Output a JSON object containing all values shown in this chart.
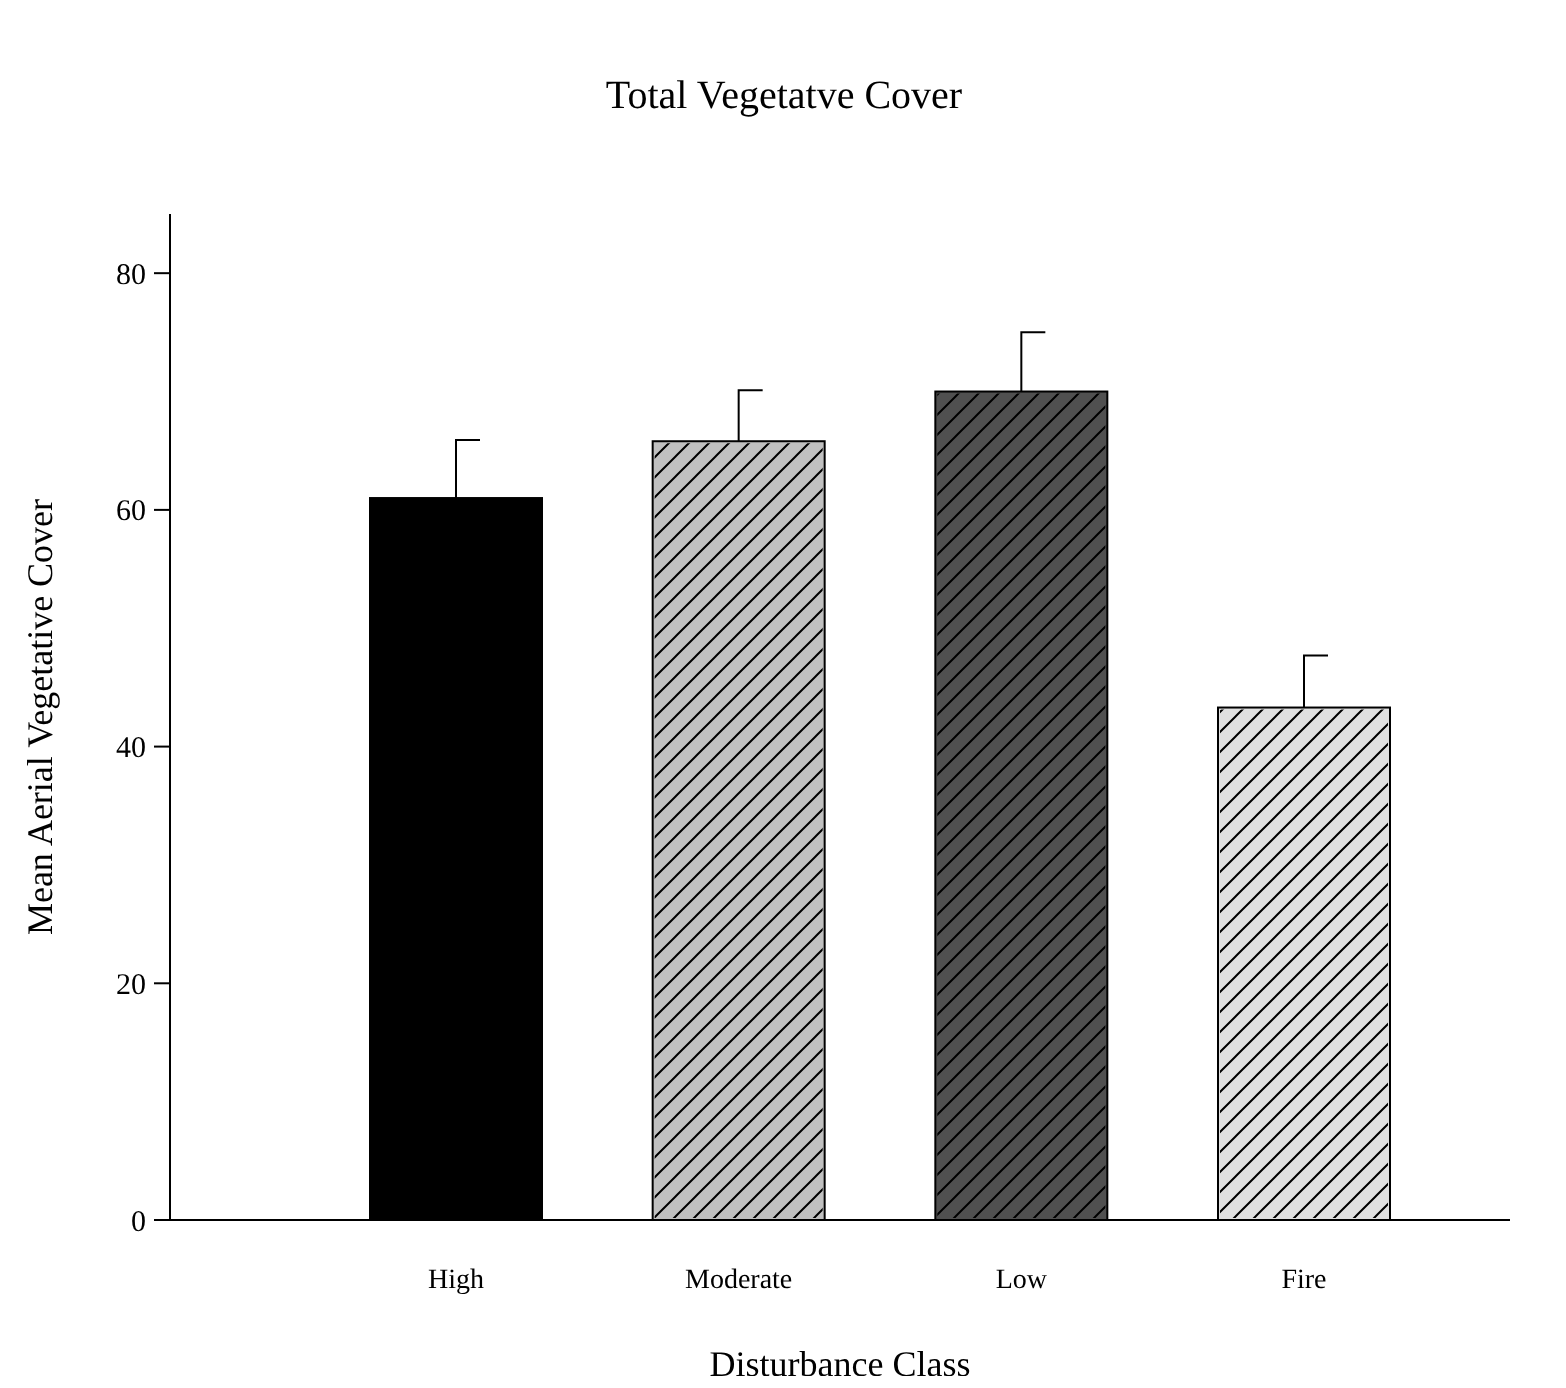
{
  "chart_data": {
    "type": "bar",
    "title": "Total Vegetatve Cover",
    "xlabel": "Disturbance Class",
    "ylabel": "Mean Aerial Vegetative Cover",
    "categories": [
      "High",
      "Moderate",
      "Low",
      "Fire"
    ],
    "values": [
      61,
      65.8,
      70,
      43.3
    ],
    "errors": [
      4.9,
      4.3,
      5,
      4.4
    ],
    "colors": [
      "#000000",
      "#c0c0c0",
      "#505050",
      "#e0e0e0"
    ],
    "ylim": [
      0,
      85
    ],
    "yticks": [
      0,
      20,
      40,
      60,
      80
    ],
    "grid": false
  }
}
